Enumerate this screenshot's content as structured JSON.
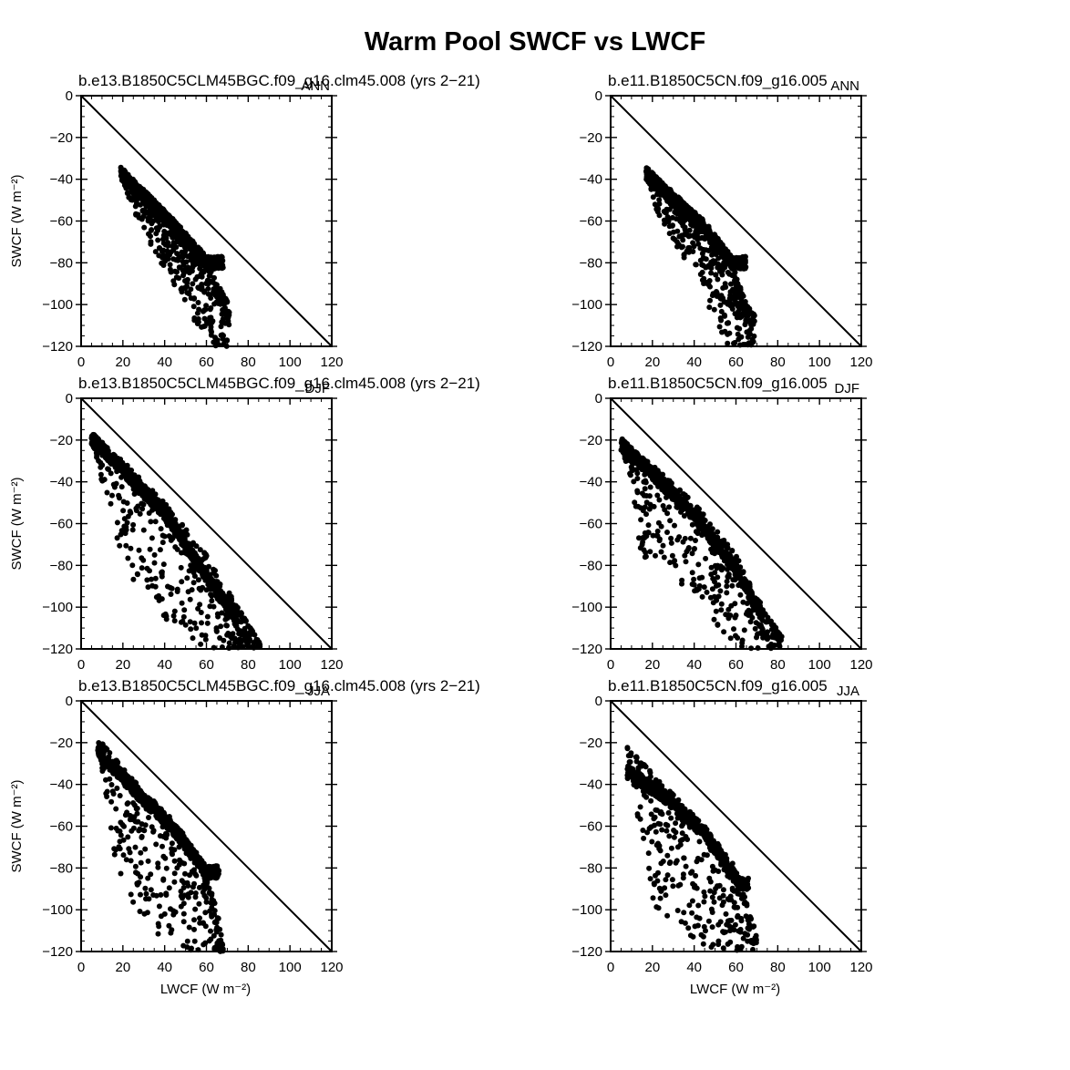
{
  "title": "Warm Pool SWCF vs LWCF",
  "chart_data": [
    {
      "type": "scatter",
      "title": "b.e13.B1850C5CLM45BGC.f09_g16.clm45.008 (yrs 2−21)",
      "season": "ANN",
      "xlabel": "",
      "ylabel": "SWCF (W m⁻²)",
      "xlim": [
        0,
        120
      ],
      "ylim": [
        -120,
        0
      ],
      "xticks": [
        "0",
        "20",
        "40",
        "60",
        "80",
        "100",
        "120"
      ],
      "yticks": [
        "0",
        "−20",
        "−40",
        "−60",
        "−80",
        "−100",
        "−120"
      ],
      "reference_line": [
        [
          0,
          0
        ],
        [
          120,
          -120
        ]
      ],
      "point_cloud": {
        "x_start": 19,
        "x_end": 71,
        "upper": [
          [
            19,
            -36
          ],
          [
            30,
            -46
          ],
          [
            45,
            -63
          ],
          [
            60,
            -80
          ],
          [
            68,
            -95
          ],
          [
            71,
            -100
          ]
        ],
        "lower": [
          [
            19,
            -38
          ],
          [
            25,
            -55
          ],
          [
            35,
            -75
          ],
          [
            45,
            -92
          ],
          [
            55,
            -110
          ],
          [
            62,
            -120
          ]
        ],
        "ridge": [
          [
            19,
            -37
          ],
          [
            30,
            -48
          ],
          [
            45,
            -63
          ],
          [
            60,
            -80
          ]
        ],
        "n": 1100
      }
    },
    {
      "type": "scatter",
      "title": "b.e11.B1850C5CN.f09_g16.005",
      "season": "ANN",
      "xlabel": "",
      "ylabel": "",
      "xlim": [
        0,
        120
      ],
      "ylim": [
        -120,
        0
      ],
      "xticks": [
        "0",
        "20",
        "40",
        "60",
        "80",
        "100",
        "120"
      ],
      "yticks": [
        "0",
        "−20",
        "−40",
        "−60",
        "−80",
        "−100",
        "−120"
      ],
      "reference_line": [
        [
          0,
          0
        ],
        [
          120,
          -120
        ]
      ],
      "point_cloud": {
        "x_start": 17,
        "x_end": 69,
        "upper": [
          [
            17,
            -36
          ],
          [
            30,
            -46
          ],
          [
            45,
            -62
          ],
          [
            58,
            -80
          ],
          [
            65,
            -100
          ],
          [
            69,
            -105
          ]
        ],
        "lower": [
          [
            17,
            -38
          ],
          [
            22,
            -55
          ],
          [
            30,
            -70
          ],
          [
            42,
            -88
          ],
          [
            50,
            -110
          ],
          [
            56,
            -120
          ]
        ],
        "ridge": [
          [
            17,
            -37
          ],
          [
            30,
            -50
          ],
          [
            45,
            -63
          ],
          [
            58,
            -80
          ]
        ],
        "n": 1100
      }
    },
    {
      "type": "scatter",
      "title": "b.e13.B1850C5CLM45BGC.f09_g16.clm45.008 (yrs 2−21)",
      "season": "DJF",
      "xlabel": "",
      "ylabel": "SWCF (W m⁻²)",
      "xlim": [
        0,
        120
      ],
      "ylim": [
        -120,
        0
      ],
      "xticks": [
        "0",
        "20",
        "40",
        "60",
        "80",
        "100",
        "120"
      ],
      "yticks": [
        "0",
        "−20",
        "−40",
        "−60",
        "−80",
        "−100",
        "−120"
      ],
      "reference_line": [
        [
          0,
          0
        ],
        [
          120,
          -120
        ]
      ],
      "point_cloud": {
        "x_start": 5,
        "x_end": 86,
        "upper": [
          [
            5,
            -18
          ],
          [
            20,
            -30
          ],
          [
            40,
            -50
          ],
          [
            60,
            -75
          ],
          [
            75,
            -100
          ],
          [
            86,
            -118
          ]
        ],
        "lower": [
          [
            5,
            -20
          ],
          [
            10,
            -40
          ],
          [
            15,
            -60
          ],
          [
            20,
            -80
          ],
          [
            35,
            -100
          ],
          [
            55,
            -120
          ]
        ],
        "ridge": [
          [
            5,
            -19
          ],
          [
            20,
            -34
          ],
          [
            40,
            -55
          ],
          [
            60,
            -85
          ],
          [
            72,
            -102
          ]
        ],
        "n": 1100
      }
    },
    {
      "type": "scatter",
      "title": "b.e11.B1850C5CN.f09_g16.005",
      "season": "DJF",
      "xlabel": "",
      "ylabel": "",
      "xlim": [
        0,
        120
      ],
      "ylim": [
        -120,
        0
      ],
      "xticks": [
        "0",
        "20",
        "40",
        "60",
        "80",
        "100",
        "120"
      ],
      "yticks": [
        "0",
        "−20",
        "−40",
        "−60",
        "−80",
        "−100",
        "−120"
      ],
      "reference_line": [
        [
          0,
          0
        ],
        [
          120,
          -120
        ]
      ],
      "point_cloud": {
        "x_start": 5,
        "x_end": 82,
        "upper": [
          [
            5,
            -21
          ],
          [
            20,
            -32
          ],
          [
            40,
            -50
          ],
          [
            60,
            -75
          ],
          [
            72,
            -100
          ],
          [
            82,
            -114
          ]
        ],
        "lower": [
          [
            5,
            -23
          ],
          [
            10,
            -40
          ],
          [
            12,
            -60
          ],
          [
            15,
            -75
          ],
          [
            35,
            -90
          ],
          [
            55,
            -120
          ]
        ],
        "ridge": [
          [
            5,
            -22
          ],
          [
            20,
            -36
          ],
          [
            40,
            -56
          ],
          [
            60,
            -82
          ],
          [
            70,
            -100
          ]
        ],
        "n": 1100
      }
    },
    {
      "type": "scatter",
      "title": "b.e13.B1850C5CLM45BGC.f09_g16.clm45.008 (yrs 2−21)",
      "season": "JJA",
      "xlabel": "LWCF (W m⁻²)",
      "ylabel": "SWCF (W m⁻²)",
      "xlim": [
        0,
        120
      ],
      "ylim": [
        -120,
        0
      ],
      "xticks": [
        "0",
        "20",
        "40",
        "60",
        "80",
        "100",
        "120"
      ],
      "yticks": [
        "0",
        "−20",
        "−40",
        "−60",
        "−80",
        "−100",
        "−120"
      ],
      "reference_line": [
        [
          0,
          0
        ],
        [
          120,
          -120
        ]
      ],
      "point_cloud": {
        "x_start": 8,
        "x_end": 68,
        "upper": [
          [
            8,
            -18
          ],
          [
            25,
            -38
          ],
          [
            45,
            -58
          ],
          [
            60,
            -80
          ],
          [
            66,
            -105
          ],
          [
            68,
            -118
          ]
        ],
        "lower": [
          [
            8,
            -20
          ],
          [
            12,
            -45
          ],
          [
            15,
            -70
          ],
          [
            20,
            -90
          ],
          [
            30,
            -105
          ],
          [
            45,
            -120
          ]
        ],
        "ridge": [
          [
            8,
            -24
          ],
          [
            25,
            -42
          ],
          [
            45,
            -62
          ],
          [
            60,
            -82
          ]
        ],
        "n": 950
      }
    },
    {
      "type": "scatter",
      "title": "b.e11.B1850C5CN.f09_g16.005",
      "season": "JJA",
      "xlabel": "LWCF (W m⁻²)",
      "ylabel": "",
      "xlim": [
        0,
        120
      ],
      "ylim": [
        -120,
        0
      ],
      "xticks": [
        "0",
        "20",
        "40",
        "60",
        "80",
        "100",
        "120"
      ],
      "yticks": [
        "0",
        "−20",
        "−40",
        "−60",
        "−80",
        "−100",
        "−120"
      ],
      "reference_line": [
        [
          0,
          0
        ],
        [
          120,
          -120
        ]
      ],
      "point_cloud": {
        "x_start": 8,
        "x_end": 70,
        "upper": [
          [
            8,
            -22
          ],
          [
            25,
            -40
          ],
          [
            45,
            -60
          ],
          [
            60,
            -80
          ],
          [
            66,
            -100
          ],
          [
            70,
            -112
          ]
        ],
        "lower": [
          [
            8,
            -25
          ],
          [
            12,
            -50
          ],
          [
            15,
            -75
          ],
          [
            18,
            -95
          ],
          [
            28,
            -110
          ],
          [
            40,
            -120
          ]
        ],
        "ridge": [
          [
            8,
            -34
          ],
          [
            25,
            -45
          ],
          [
            45,
            -63
          ],
          [
            62,
            -88
          ]
        ],
        "n": 950
      }
    }
  ]
}
